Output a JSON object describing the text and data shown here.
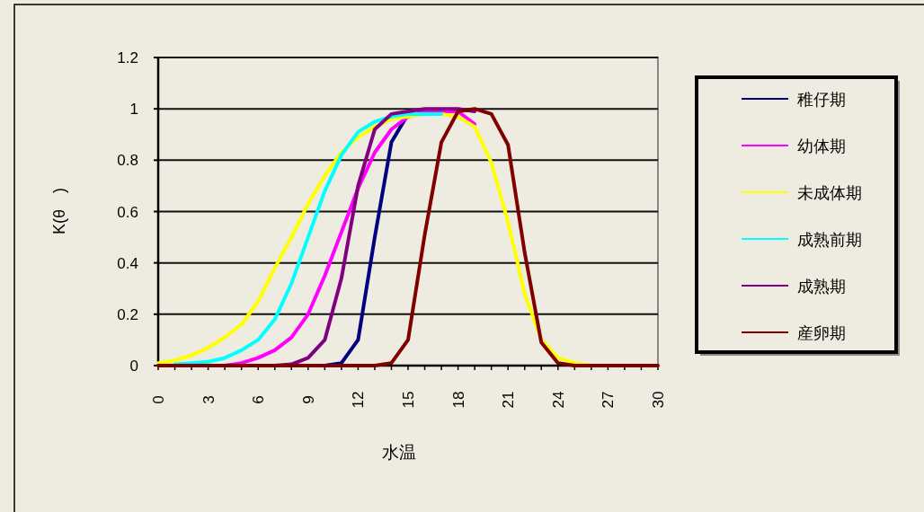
{
  "chart_data": {
    "type": "line",
    "xlabel": "水温",
    "ylabel": "K(θ　)",
    "x": [
      0,
      1,
      2,
      3,
      4,
      5,
      6,
      7,
      8,
      9,
      10,
      11,
      12,
      13,
      14,
      15,
      16,
      17,
      18,
      19,
      20,
      21,
      22,
      23,
      24,
      25,
      26,
      27,
      28,
      29,
      30
    ],
    "xlim": [
      0,
      30
    ],
    "xticks": [
      0,
      {
        "value": 1,
        "label": null
      },
      {
        "value": 2,
        "label": null
      },
      3,
      {
        "value": 4,
        "label": null
      },
      {
        "value": 5,
        "label": null
      },
      6,
      {
        "value": 7,
        "label": null
      },
      {
        "value": 8,
        "label": null
      },
      9,
      {
        "value": 10,
        "label": null
      },
      {
        "value": 11,
        "label": null
      },
      12,
      {
        "value": 13,
        "label": null
      },
      {
        "value": 14,
        "label": null
      },
      15,
      {
        "value": 16,
        "label": null
      },
      {
        "value": 17,
        "label": null
      },
      18,
      {
        "value": 19,
        "label": null
      },
      {
        "value": 20,
        "label": null
      },
      21,
      {
        "value": 22,
        "label": null
      },
      {
        "value": 23,
        "label": null
      },
      24,
      {
        "value": 25,
        "label": null
      },
      {
        "value": 26,
        "label": null
      },
      27,
      {
        "value": 28,
        "label": null
      },
      {
        "value": 29,
        "label": null
      },
      30
    ],
    "ylim": [
      0,
      1.2
    ],
    "yticks": [
      0,
      0.2,
      0.4,
      0.6,
      0.8,
      1,
      1.2
    ],
    "grid": "y",
    "legend": "right",
    "marker": "none",
    "line_style": "solid",
    "series": [
      {
        "name": "稚仔期",
        "color": "#000080",
        "values": [
          null,
          null,
          null,
          null,
          null,
          null,
          null,
          null,
          null,
          null,
          0,
          0.01,
          0.1,
          0.5,
          0.87,
          0.98,
          null,
          null,
          null,
          null,
          null,
          null,
          null,
          null,
          null,
          null,
          null,
          null,
          null,
          null,
          null
        ]
      },
      {
        "name": "幼体期",
        "color": "#ff00ff",
        "values": [
          null,
          null,
          null,
          0,
          0,
          0.01,
          0.03,
          0.06,
          0.11,
          0.2,
          0.35,
          0.52,
          0.69,
          0.83,
          0.92,
          0.97,
          0.99,
          0.99,
          0.99,
          0.94,
          null,
          null,
          null,
          null,
          null,
          null,
          null,
          null,
          null,
          null,
          null
        ]
      },
      {
        "name": "未成体期",
        "color": "#ffff00",
        "values": [
          0.01,
          0.02,
          0.04,
          0.07,
          0.11,
          0.16,
          0.25,
          0.38,
          0.5,
          0.63,
          0.74,
          0.83,
          0.89,
          0.93,
          0.96,
          0.97,
          0.98,
          0.98,
          0.97,
          0.93,
          0.79,
          0.56,
          0.28,
          0.1,
          0.03,
          0.01,
          0,
          0,
          null,
          null,
          null
        ]
      },
      {
        "name": "成熟前期",
        "color": "#00ffff",
        "values": [
          null,
          0.005,
          0.01,
          0.015,
          0.03,
          0.06,
          0.1,
          0.18,
          0.32,
          0.5,
          0.68,
          0.82,
          0.91,
          0.95,
          0.97,
          0.98,
          0.98,
          0.98,
          null,
          null,
          null,
          null,
          null,
          null,
          null,
          null,
          null,
          null,
          null,
          null,
          null
        ]
      },
      {
        "name": "成熟期",
        "color": "#800080",
        "values": [
          null,
          null,
          null,
          null,
          null,
          null,
          null,
          0,
          0.005,
          0.03,
          0.1,
          0.34,
          0.7,
          0.92,
          0.98,
          0.99,
          1,
          1,
          1,
          0.99,
          null,
          null,
          null,
          null,
          null,
          null,
          null,
          null,
          null,
          null,
          null
        ]
      },
      {
        "name": "産卵期",
        "color": "#800000",
        "values": [
          0,
          0,
          0,
          0,
          0,
          0,
          0,
          0,
          0,
          0,
          0,
          0,
          0,
          0,
          0.01,
          0.1,
          0.51,
          0.87,
          0.99,
          1,
          0.98,
          0.86,
          0.44,
          0.09,
          0.01,
          0,
          0,
          0,
          0,
          0,
          0
        ]
      }
    ]
  }
}
